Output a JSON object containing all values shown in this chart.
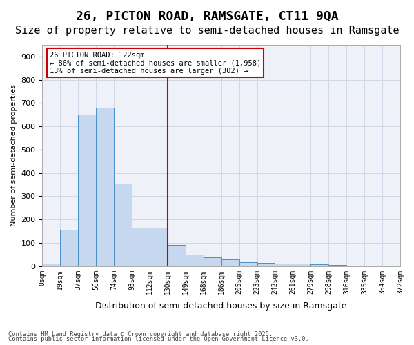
{
  "title": "26, PICTON ROAD, RAMSGATE, CT11 9QA",
  "subtitle": "Size of property relative to semi-detached houses in Ramsgate",
  "xlabel": "Distribution of semi-detached houses by size in Ramsgate",
  "ylabel": "Number of semi-detached properties",
  "footnote1": "Contains HM Land Registry data © Crown copyright and database right 2025.",
  "footnote2": "Contains public sector information licensed under the Open Government Licence v3.0.",
  "annotation_title": "26 PICTON ROAD: 122sqm",
  "annotation_line1": "← 86% of semi-detached houses are smaller (1,958)",
  "annotation_line2": "13% of semi-detached houses are larger (302) →",
  "bin_labels": [
    "0sqm",
    "19sqm",
    "37sqm",
    "56sqm",
    "74sqm",
    "93sqm",
    "112sqm",
    "130sqm",
    "149sqm",
    "168sqm",
    "186sqm",
    "205sqm",
    "223sqm",
    "242sqm",
    "261sqm",
    "279sqm",
    "298sqm",
    "316sqm",
    "335sqm",
    "354sqm",
    "372sqm"
  ],
  "bar_values": [
    10,
    155,
    650,
    680,
    355,
    165,
    165,
    90,
    50,
    38,
    30,
    18,
    15,
    12,
    10,
    7,
    5,
    3,
    2,
    1
  ],
  "bar_color": "#c5d8f0",
  "bar_edge_color": "#4a90c8",
  "vline_color": "#cc0000",
  "vline_x": 6.5,
  "ylim": [
    0,
    950
  ],
  "yticks": [
    0,
    100,
    200,
    300,
    400,
    500,
    600,
    700,
    800,
    900
  ],
  "grid_color": "#d0d8e8",
  "bg_color": "#eef2f8",
  "box_color": "#cc0000",
  "title_fontsize": 13,
  "subtitle_fontsize": 11
}
